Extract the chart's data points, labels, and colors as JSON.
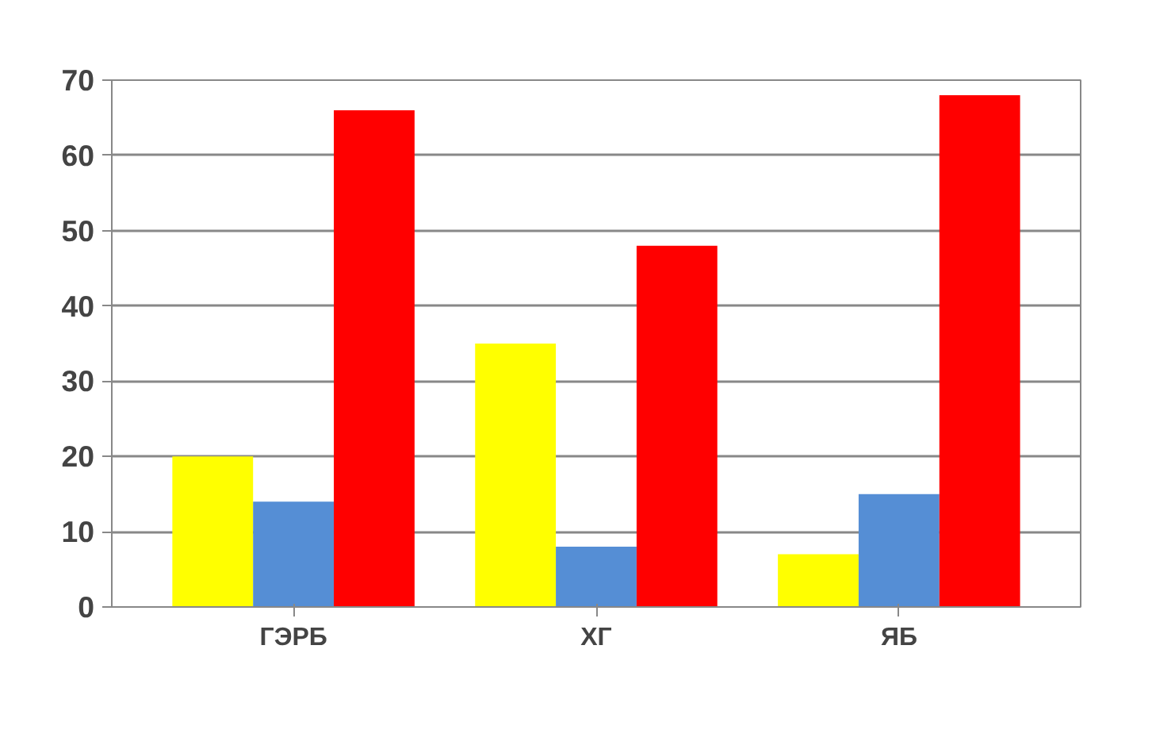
{
  "chart_data": {
    "type": "bar",
    "categories": [
      "ГЭРБ",
      "ХГ",
      "ЯБ"
    ],
    "series": [
      {
        "color": "#ffff00",
        "values": [
          20,
          35,
          7
        ]
      },
      {
        "color": "#558ed5",
        "values": [
          14,
          8,
          15
        ]
      },
      {
        "color": "#ff0000",
        "values": [
          66,
          48,
          68
        ]
      }
    ],
    "ylim": [
      0,
      70
    ],
    "yticks": [
      0,
      10,
      20,
      30,
      40,
      50,
      60,
      70
    ],
    "grid": "y"
  }
}
